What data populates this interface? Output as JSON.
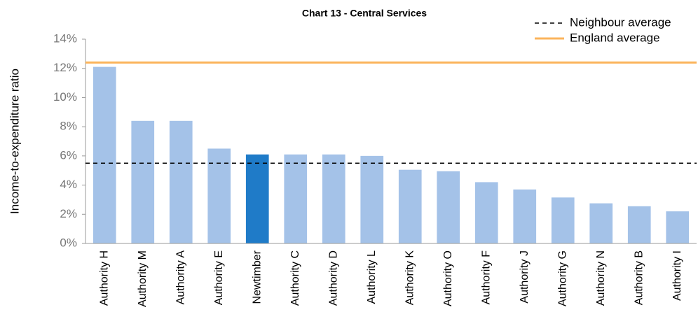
{
  "chart_data": {
    "type": "bar",
    "title": "Chart 13 - Central Services",
    "y_label": "Income-to-expenditure ratio",
    "categories": [
      "Authority H",
      "Authority M",
      "Authority A",
      "Authority E",
      "Newtimber",
      "Authority C",
      "Authority D",
      "Authority L",
      "Authority K",
      "Authority O",
      "Authority F",
      "Authority J",
      "Authority G",
      "Authority N",
      "Authority B",
      "Authority I"
    ],
    "values": [
      12.1,
      8.4,
      8.4,
      6.5,
      6.1,
      6.1,
      6.1,
      6.0,
      5.05,
      4.95,
      4.2,
      3.7,
      3.15,
      2.75,
      2.55,
      2.2
    ],
    "colors": [
      "#a4c2e8",
      "#a4c2e8",
      "#a4c2e8",
      "#a4c2e8",
      "#1f7bc8",
      "#a4c2e8",
      "#a4c2e8",
      "#a4c2e8",
      "#a4c2e8",
      "#a4c2e8",
      "#a4c2e8",
      "#a4c2e8",
      "#a4c2e8",
      "#a4c2e8",
      "#a4c2e8",
      "#a4c2e8"
    ],
    "reference_lines": [
      {
        "name": "Neighbour average",
        "value": 5.5,
        "color": "#000000",
        "style": "dashed"
      },
      {
        "name": "England average",
        "value": 12.4,
        "color": "#fbb45c",
        "style": "solid"
      }
    ],
    "legend": "top-right",
    "ylim": [
      0,
      14
    ],
    "yticks": [
      {
        "value": 0,
        "label": "0%"
      },
      {
        "value": 2,
        "label": "2%"
      },
      {
        "value": 4,
        "label": "4%"
      },
      {
        "value": 6,
        "label": "6%"
      },
      {
        "value": 8,
        "label": "8%"
      },
      {
        "value": 10,
        "label": "10%"
      },
      {
        "value": 12,
        "label": "12%"
      },
      {
        "value": 14,
        "label": "14%"
      }
    ]
  }
}
